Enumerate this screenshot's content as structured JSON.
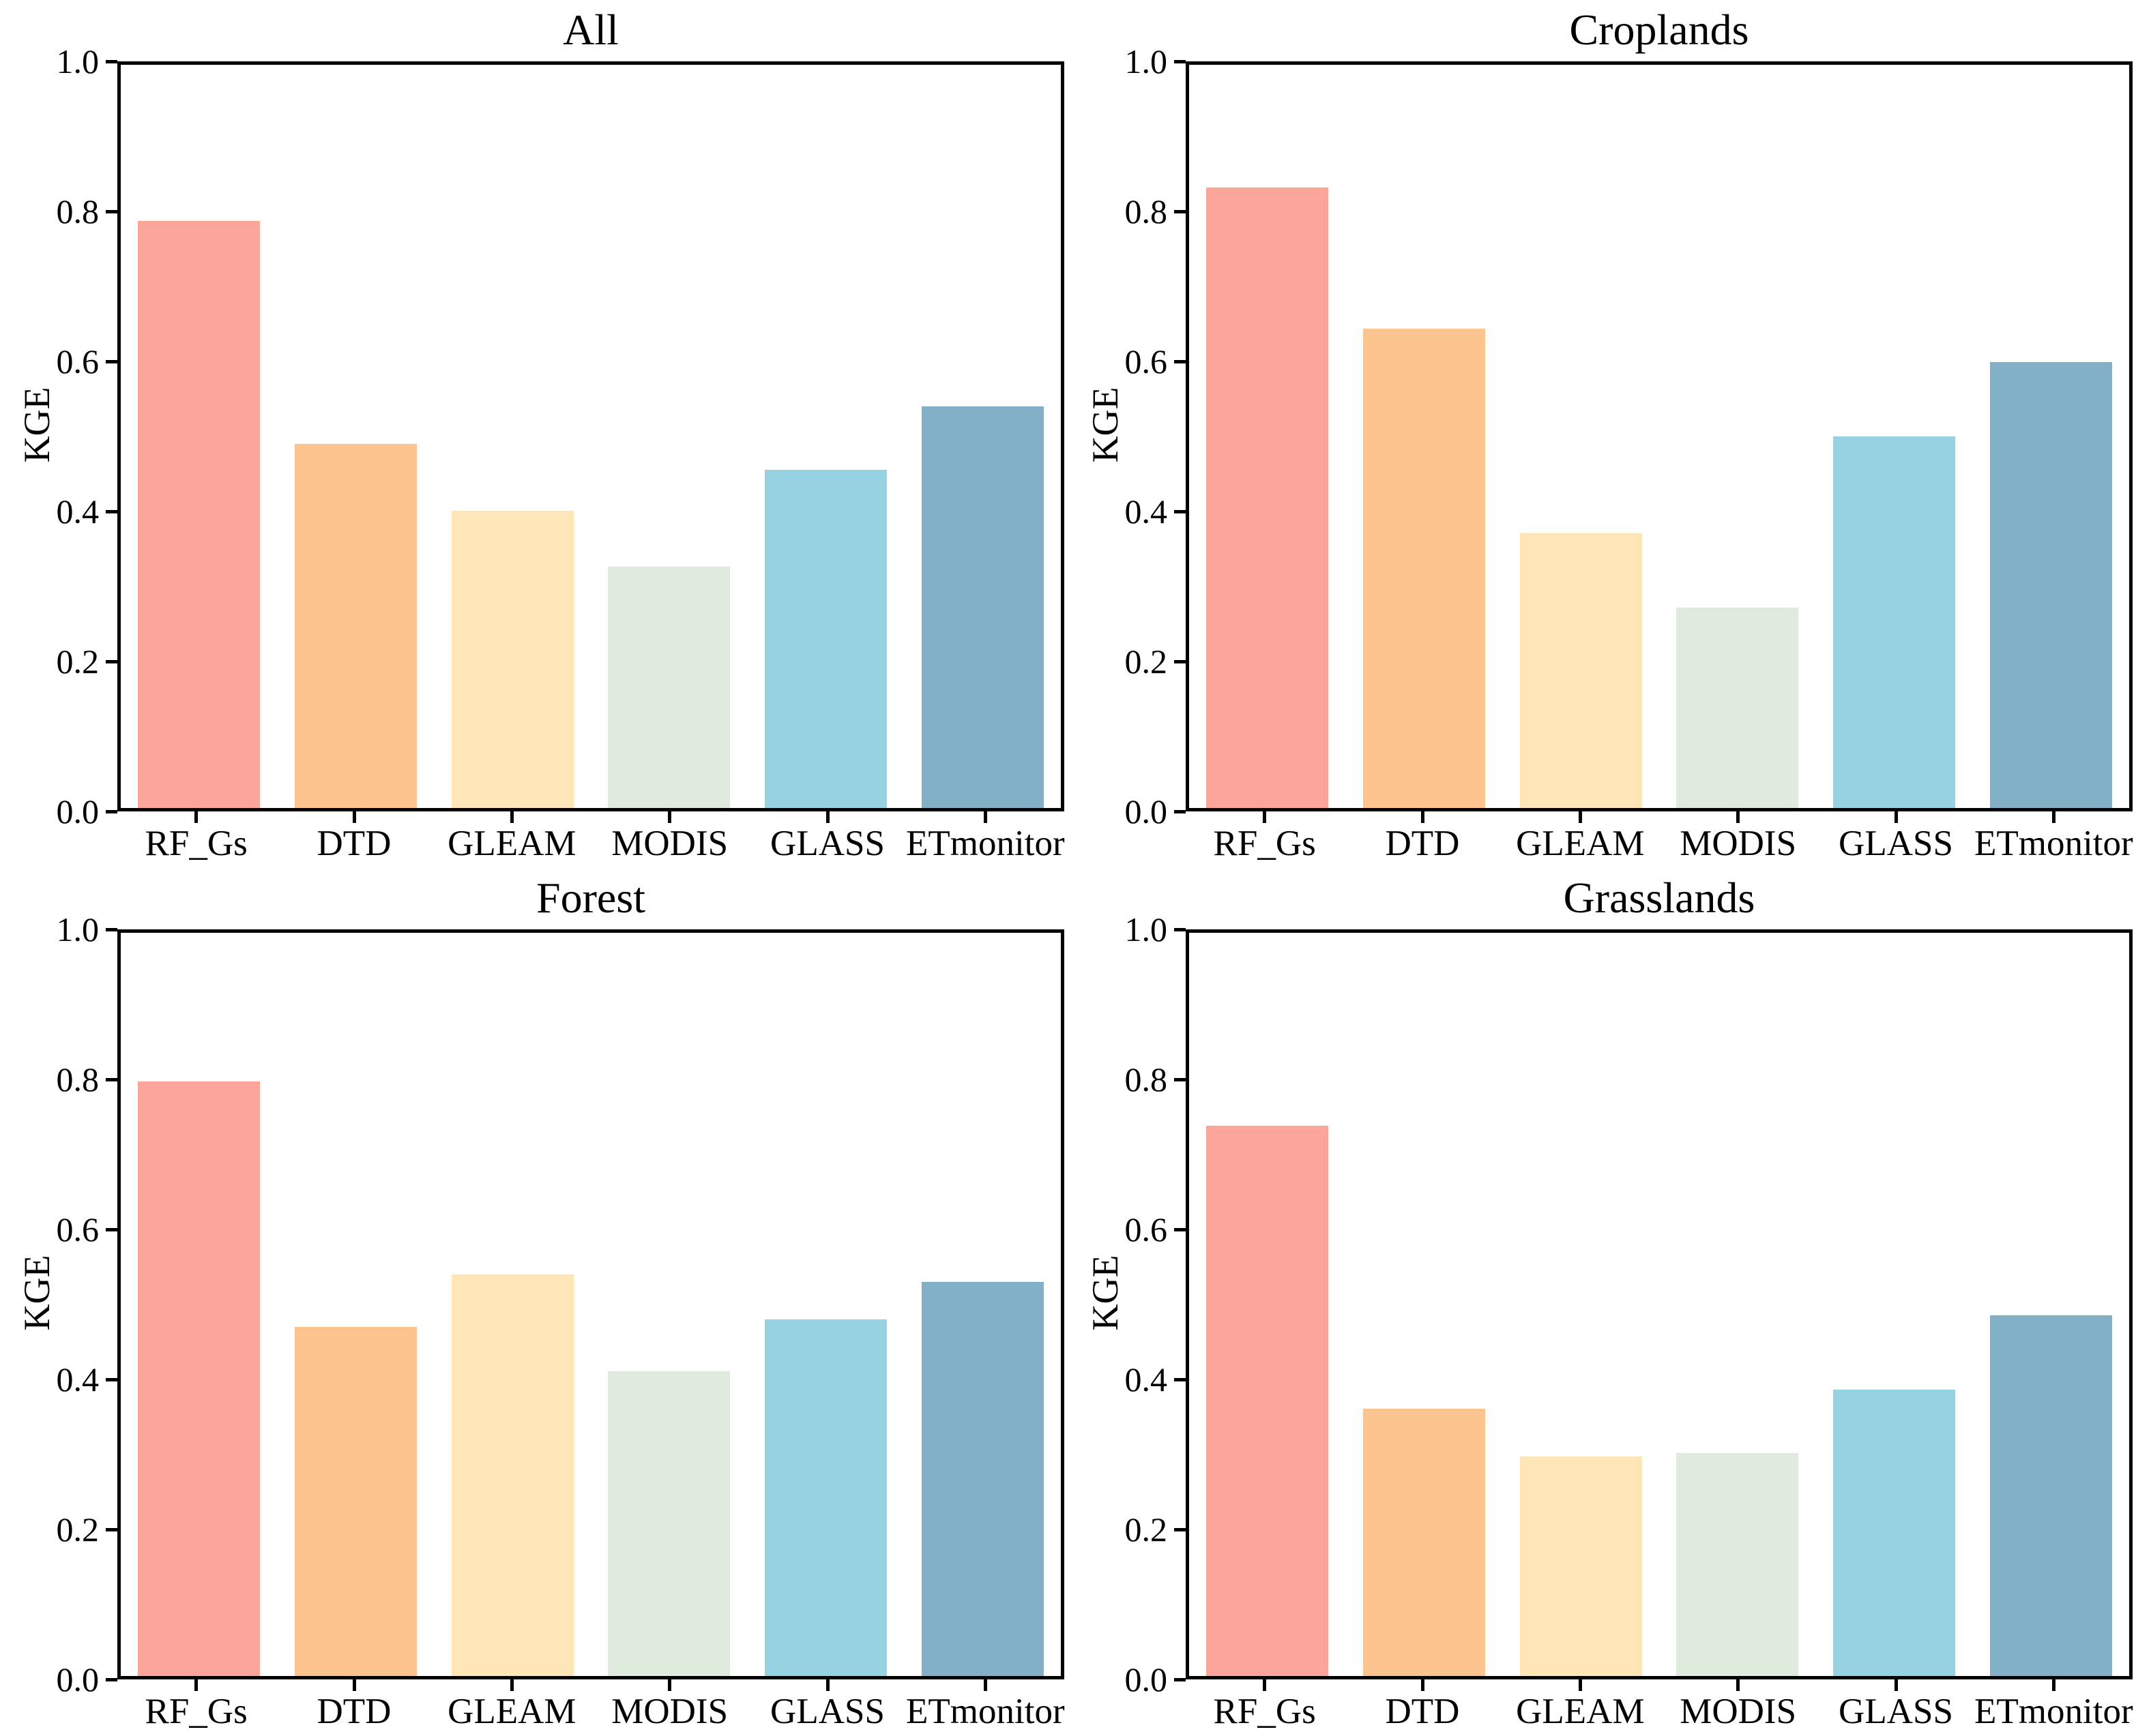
{
  "figure": {
    "background": "#ffffff",
    "y_axis_label": "KGE",
    "y_ticks": [
      "0.0",
      "0.2",
      "0.4",
      "0.6",
      "0.8",
      "1.0"
    ],
    "categories": [
      "RF_Gs",
      "DTD",
      "GLEAM",
      "MODIS",
      "GLASS",
      "ETmonitor"
    ],
    "bar_colors": [
      "#FBA59B",
      "#FCC48F",
      "#FDE5B5",
      "#DFEBDD",
      "#96D2E1",
      "#82B0C7"
    ],
    "axis_color": "#000000"
  },
  "chart_data": [
    {
      "type": "bar",
      "title": "All",
      "xlabel": "",
      "ylabel": "KGE",
      "ylim": [
        0,
        1
      ],
      "grid": false,
      "categories": [
        "RF_Gs",
        "DTD",
        "GLEAM",
        "MODIS",
        "GLASS",
        "ETmonitor"
      ],
      "values": [
        0.79,
        0.49,
        0.4,
        0.325,
        0.455,
        0.54
      ]
    },
    {
      "type": "bar",
      "title": "Croplands",
      "xlabel": "",
      "ylabel": "KGE",
      "ylim": [
        0,
        1
      ],
      "grid": false,
      "categories": [
        "RF_Gs",
        "DTD",
        "GLEAM",
        "MODIS",
        "GLASS",
        "ETmonitor"
      ],
      "values": [
        0.835,
        0.645,
        0.37,
        0.27,
        0.5,
        0.6
      ]
    },
    {
      "type": "bar",
      "title": "Forest",
      "xlabel": "",
      "ylabel": "KGE",
      "ylim": [
        0,
        1
      ],
      "grid": false,
      "categories": [
        "RF_Gs",
        "DTD",
        "GLEAM",
        "MODIS",
        "GLASS",
        "ETmonitor"
      ],
      "values": [
        0.8,
        0.47,
        0.54,
        0.41,
        0.48,
        0.53
      ]
    },
    {
      "type": "bar",
      "title": "Grasslands",
      "xlabel": "",
      "ylabel": "KGE",
      "ylim": [
        0,
        1
      ],
      "grid": false,
      "categories": [
        "RF_Gs",
        "DTD",
        "GLEAM",
        "MODIS",
        "GLASS",
        "ETmonitor"
      ],
      "values": [
        0.74,
        0.36,
        0.295,
        0.3,
        0.385,
        0.485
      ]
    }
  ]
}
